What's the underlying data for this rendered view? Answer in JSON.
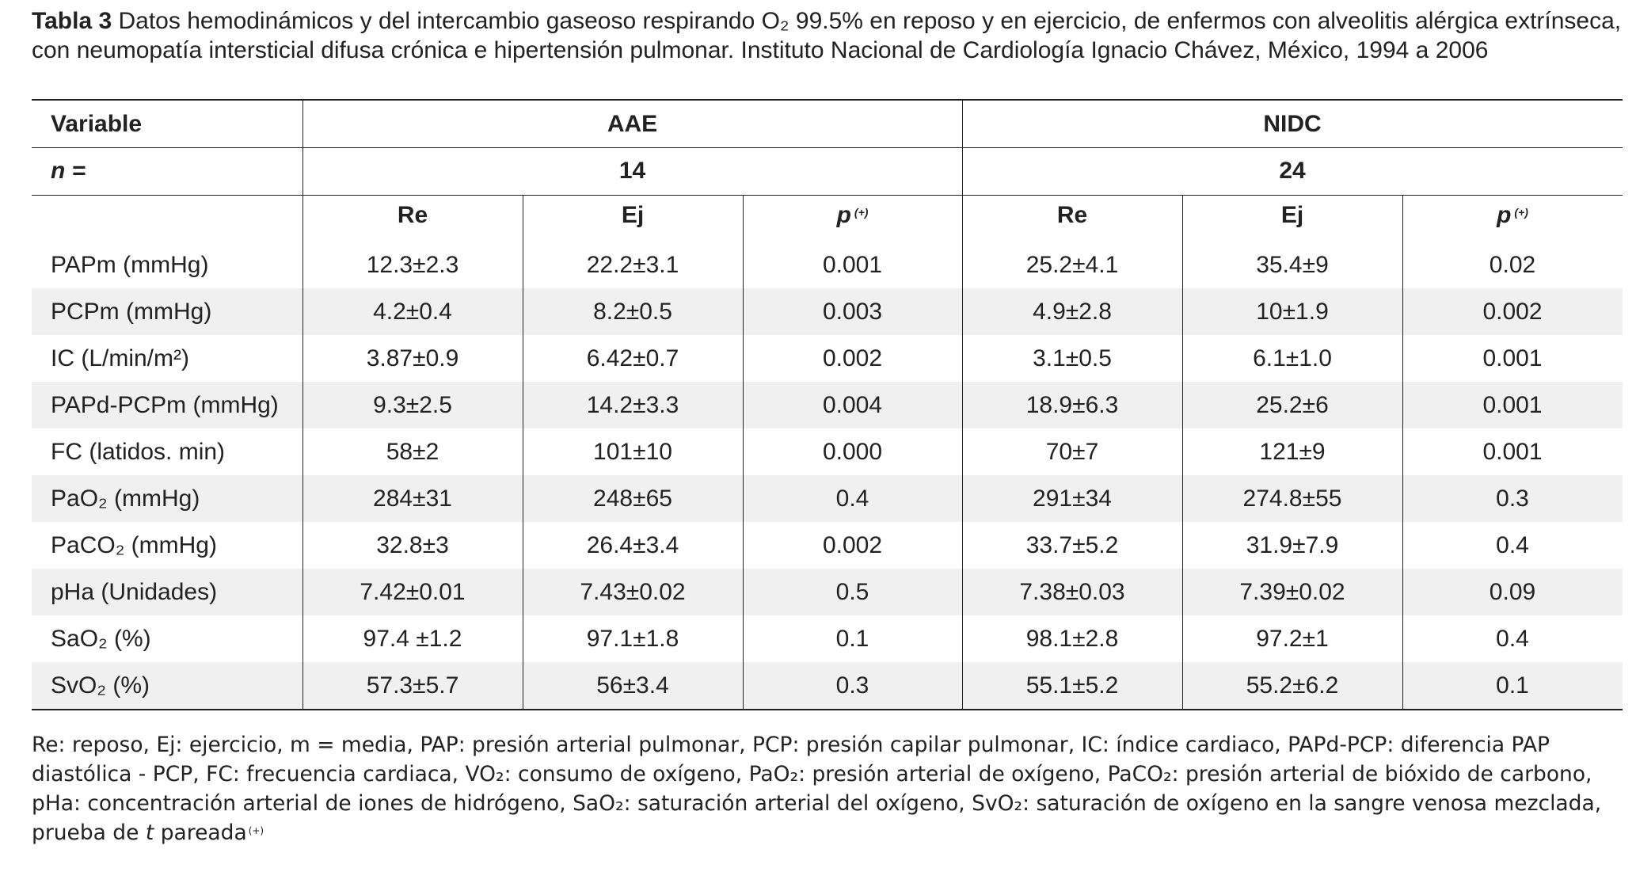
{
  "title": {
    "label": "Tabla 3",
    "text": "Datos hemodinámicos y del intercambio gaseoso respirando O₂ 99.5% en reposo y en ejercicio, de enfermos con alveolitis alérgica extrínseca, con neumopatía intersticial difusa crónica e hipertensión pulmonar. Instituto Nacional de Cardiología Ignacio Chávez, México, 1994 a 2006"
  },
  "table": {
    "variable": "Variable",
    "groups": [
      "AAE",
      "NIDC"
    ],
    "n_label": "n =",
    "n": [
      14,
      24
    ],
    "subcolumns": [
      {
        "text": "Re"
      },
      {
        "text": "Ej"
      },
      {
        "text": "p",
        "sup": "(+)"
      },
      {
        "text": "Re"
      },
      {
        "text": "Ej"
      },
      {
        "text": "p",
        "sup": "(+)"
      }
    ],
    "rows": [
      [
        "PAPm (mmHg)",
        "12.3±2.3",
        "22.2±3.1",
        "0.001",
        "25.2±4.1",
        "35.4±9",
        "0.02"
      ],
      [
        "PCPm (mmHg)",
        "4.2±0.4",
        "8.2±0.5",
        "0.003",
        "4.9±2.8",
        "10±1.9",
        "0.002"
      ],
      [
        "IC (L/min/m²)",
        "3.87±0.9",
        "6.42±0.7",
        "0.002",
        "3.1±0.5",
        "6.1±1.0",
        "0.001"
      ],
      [
        "PAPd-PCPm (mmHg)",
        "9.3±2.5",
        "14.2±3.3",
        "0.004",
        "18.9±6.3",
        "25.2±6",
        "0.001"
      ],
      [
        "FC (latidos. min)",
        "58±2",
        "101±10",
        "0.000",
        "70±7",
        "121±9",
        "0.001"
      ],
      [
        "PaO₂ (mmHg)",
        "284±31",
        "248±65",
        "0.4",
        "291±34",
        "274.8±55",
        "0.3"
      ],
      [
        "PaCO₂ (mmHg)",
        "32.8±3",
        "26.4±3.4",
        "0.002",
        "33.7±5.2",
        "31.9±7.9",
        "0.4"
      ],
      [
        "pHa (Unidades)",
        "7.42±0.01",
        "7.43±0.02",
        "0.5",
        "7.38±0.03",
        "7.39±0.02",
        "0.09"
      ],
      [
        "SaO₂ (%)",
        "97.4 ±1.2",
        "97.1±1.8",
        "0.1",
        "98.1±2.8",
        "97.2±1",
        "0.4"
      ],
      [
        "SvO₂ (%)",
        "57.3±5.7",
        "56±3.4",
        "0.3",
        "55.1±5.2",
        "55.2±6.2",
        "0.1"
      ]
    ]
  },
  "footnote": {
    "text": "Re: reposo, Ej: ejercicio, m = media, PAP: presión arterial pulmonar, PCP: presión capilar pulmonar, IC: índice cardiaco, PAPd-PCP: diferencia PAP diastólica - PCP, FC: frecuencia cardiaca, VO₂: consumo de oxígeno, PaO₂: presión arterial de oxígeno, PaCO₂: presión arterial de bióxido de carbono, pHa: concentración arterial de iones de hidrógeno, SaO₂: saturación arterial del oxígeno, SvO₂: saturación de oxígeno en la sangre venosa mezclada, prueba de",
    "italic": "t",
    "after": "pareada",
    "sup": "(+)"
  }
}
